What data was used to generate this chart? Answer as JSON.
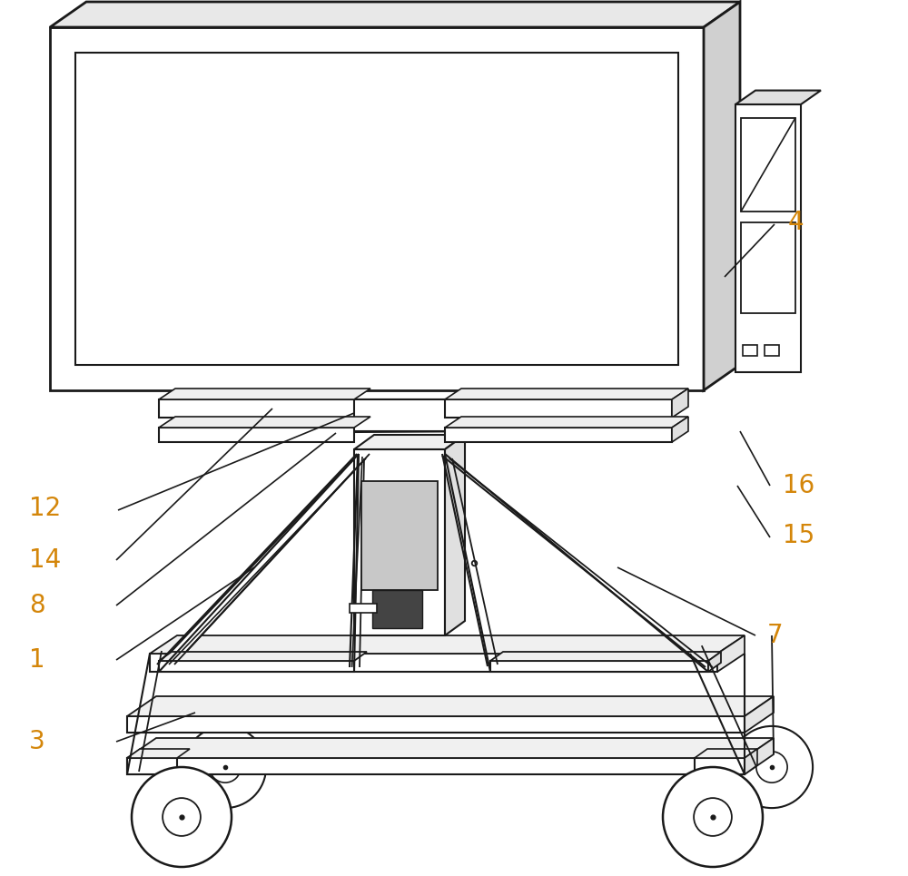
{
  "bg_color": "#ffffff",
  "line_color": "#1a1a1a",
  "line_width": 1.5,
  "label_color": "#d4860a",
  "label_fontsize": 20
}
